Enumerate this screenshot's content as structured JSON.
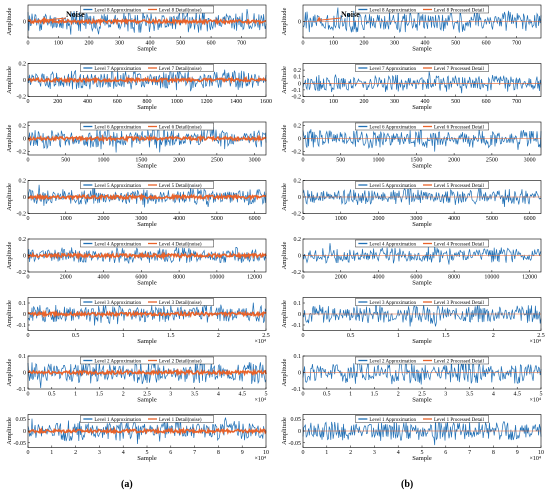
{
  "columns": [
    {
      "label": "(a)",
      "panels": [
        {
          "legend": [
            "Level 8 Approximation",
            "Level 8 Detail(noise)"
          ],
          "noise": true,
          "annotation": "Noise",
          "xlim": [
            0,
            780
          ],
          "xticks": [
            "0",
            "100",
            "200",
            "300",
            "400",
            "500",
            "600",
            "700"
          ],
          "xtick_values": [
            0,
            100,
            200,
            300,
            400,
            500,
            600,
            700
          ],
          "ylim": [
            -0.2,
            0.2
          ],
          "yticks": [
            "0"
          ],
          "ytick_values": [
            0
          ],
          "exponent": "",
          "amplitude": 0.14,
          "seed": 11
        },
        {
          "legend": [
            "Level 7 Approximation",
            "Level 7 Detail(noise)"
          ],
          "noise": true,
          "xlim": [
            0,
            1600
          ],
          "xticks": [
            "0",
            "200",
            "400",
            "600",
            "800",
            "1000",
            "1200",
            "1400",
            "1600"
          ],
          "xtick_values": [
            0,
            200,
            400,
            600,
            800,
            1000,
            1200,
            1400,
            1600
          ],
          "ylim": [
            -0.2,
            0.2
          ],
          "yticks": [
            "0.2",
            "0",
            "-0.2"
          ],
          "ytick_values": [
            0.2,
            0,
            -0.2
          ],
          "exponent": "",
          "amplitude": 0.13,
          "seed": 12
        },
        {
          "legend": [
            "Level 6 Approximation",
            "Level 6 Detail(noise)"
          ],
          "noise": true,
          "xlim": [
            0,
            3150
          ],
          "xticks": [
            "0",
            "500",
            "1000",
            "1500",
            "2000",
            "2500",
            "3000"
          ],
          "xtick_values": [
            0,
            500,
            1000,
            1500,
            2000,
            2500,
            3000
          ],
          "ylim": [
            -0.25,
            0.25
          ],
          "yticks": [
            "0.2",
            "0",
            "-0.2"
          ],
          "ytick_values": [
            0.2,
            0,
            -0.2
          ],
          "exponent": "",
          "amplitude": 0.15,
          "seed": 13
        },
        {
          "legend": [
            "Level 5 Approximation",
            "Level 5 Detail(noise)"
          ],
          "noise": true,
          "xlim": [
            0,
            6300
          ],
          "xticks": [
            "0",
            "1000",
            "2000",
            "3000",
            "4000",
            "5000",
            "6000"
          ],
          "xtick_values": [
            0,
            1000,
            2000,
            3000,
            4000,
            5000,
            6000
          ],
          "ylim": [
            -0.2,
            0.2
          ],
          "yticks": [
            "0.2",
            "0",
            "-0.2"
          ],
          "ytick_values": [
            0.2,
            0,
            -0.2
          ],
          "exponent": "",
          "amplitude": 0.1,
          "seed": 14
        },
        {
          "legend": [
            "Level 4 Approximation",
            "Level 4 Detail(noise)"
          ],
          "noise": true,
          "xlim": [
            0,
            12600
          ],
          "xticks": [
            "0",
            "2000",
            "4000",
            "6000",
            "8000",
            "10000",
            "12000"
          ],
          "xtick_values": [
            0,
            2000,
            4000,
            6000,
            8000,
            10000,
            12000
          ],
          "ylim": [
            -0.2,
            0.2
          ],
          "yticks": [
            "0.2",
            "0",
            "-0.2"
          ],
          "ytick_values": [
            0.2,
            0,
            -0.2
          ],
          "exponent": "",
          "amplitude": 0.1,
          "seed": 15
        },
        {
          "legend": [
            "Level 3 Approximation",
            "Level 3 Detail(noise)"
          ],
          "noise": true,
          "xlim": [
            0,
            2.5
          ],
          "xticks": [
            "0",
            "0.5",
            "1",
            "1.5",
            "2",
            "2.5"
          ],
          "xtick_values": [
            0,
            0.5,
            1,
            1.5,
            2,
            2.5
          ],
          "ylim": [
            -0.15,
            0.15
          ],
          "yticks": [
            "0.1",
            "0",
            "-0.1"
          ],
          "ytick_values": [
            0.1,
            0,
            -0.1
          ],
          "exponent": "×10⁴",
          "amplitude": 0.09,
          "seed": 16
        },
        {
          "legend": [
            "Level 2 Approximation",
            "Level 2 Detail(noise)"
          ],
          "noise": true,
          "xlim": [
            0,
            5
          ],
          "xticks": [
            "0",
            "0.5",
            "1",
            "1.5",
            "2",
            "2.5",
            "3",
            "3.5",
            "4",
            "4.5",
            "5"
          ],
          "xtick_values": [
            0,
            0.5,
            1,
            1.5,
            2,
            2.5,
            3,
            3.5,
            4,
            4.5,
            5
          ],
          "ylim": [
            -0.1,
            0.1
          ],
          "yticks": [
            "0.1",
            "0",
            "-0.1"
          ],
          "ytick_values": [
            0.1,
            0,
            -0.1
          ],
          "exponent": "×10⁴",
          "amplitude": 0.07,
          "seed": 17
        },
        {
          "legend": [
            "Level 1 Approximation",
            "Level 1 Detail(noise)"
          ],
          "noise": true,
          "xlim": [
            0,
            10
          ],
          "xticks": [
            "0",
            "1",
            "2",
            "3",
            "4",
            "5",
            "6",
            "7",
            "8",
            "9",
            "10"
          ],
          "xtick_values": [
            0,
            1,
            2,
            3,
            4,
            5,
            6,
            7,
            8,
            9,
            10
          ],
          "ylim": [
            -0.07,
            0.07
          ],
          "yticks": [
            "0.05",
            "0",
            "-0.05"
          ],
          "ytick_values": [
            0.05,
            0,
            -0.05
          ],
          "exponent": "×10⁴",
          "amplitude": 0.045,
          "seed": 18
        }
      ]
    },
    {
      "label": "(b)",
      "panels": [
        {
          "legend": [
            "Level 8 Approximation",
            "Level 8 Processed Detail"
          ],
          "noise": false,
          "annotation": "Noise",
          "xlim": [
            0,
            780
          ],
          "xticks": [
            "0",
            "100",
            "200",
            "300",
            "400",
            "500",
            "600",
            "700"
          ],
          "xtick_values": [
            0,
            100,
            200,
            300,
            400,
            500,
            600,
            700
          ],
          "ylim": [
            -0.2,
            0.2
          ],
          "yticks": [
            "0"
          ],
          "ytick_values": [
            0
          ],
          "exponent": "",
          "amplitude": 0.14,
          "seed": 21
        },
        {
          "legend": [
            "Level 7 Approximation",
            "Level 7 Processed Detail"
          ],
          "noise": false,
          "xlim": [
            0,
            780
          ],
          "xticks": [
            "0",
            "100",
            "200",
            "300",
            "400",
            "500",
            "600",
            "700"
          ],
          "xtick_values": [
            0,
            100,
            200,
            300,
            400,
            500,
            600,
            700
          ],
          "ylim": [
            -0.2,
            0.3
          ],
          "yticks": [
            "0.2",
            "0.1",
            "0",
            "-0.1",
            "-0.2"
          ],
          "ytick_values": [
            0.2,
            0.1,
            0,
            -0.1,
            -0.2
          ],
          "exponent": "",
          "amplitude": 0.14,
          "seed": 22
        },
        {
          "legend": [
            "Level 6 Approximation",
            "Level 6 Processed Detail"
          ],
          "noise": false,
          "xlim": [
            0,
            3150
          ],
          "xticks": [
            "0",
            "500",
            "1000",
            "1500",
            "2000",
            "2500",
            "3000"
          ],
          "xtick_values": [
            0,
            500,
            1000,
            1500,
            2000,
            2500,
            3000
          ],
          "ylim": [
            -0.25,
            0.25
          ],
          "yticks": [
            "0.2",
            "0",
            "-0.2"
          ],
          "ytick_values": [
            0.2,
            0,
            -0.2
          ],
          "exponent": "",
          "amplitude": 0.15,
          "seed": 23
        },
        {
          "legend": [
            "Level 5 Approximation",
            "Level 5 Processed Detail"
          ],
          "noise": false,
          "xlim": [
            0,
            6300
          ],
          "xticks": [
            "0",
            "1000",
            "2000",
            "3000",
            "4000",
            "5000",
            "6000"
          ],
          "xtick_values": [
            0,
            1000,
            2000,
            3000,
            4000,
            5000,
            6000
          ],
          "ylim": [
            -0.2,
            0.2
          ],
          "yticks": [
            "0.2",
            "0",
            "-0.2"
          ],
          "ytick_values": [
            0.2,
            0,
            -0.2
          ],
          "exponent": "",
          "amplitude": 0.1,
          "seed": 24
        },
        {
          "legend": [
            "Level 4 Approximation",
            "Level 4 Processed Detail"
          ],
          "noise": false,
          "xlim": [
            0,
            12600
          ],
          "xticks": [
            "0",
            "2000",
            "4000",
            "6000",
            "8000",
            "10000",
            "12000"
          ],
          "xtick_values": [
            0,
            2000,
            4000,
            6000,
            8000,
            10000,
            12000
          ],
          "ylim": [
            -0.2,
            0.2
          ],
          "yticks": [
            "0.2",
            "0",
            "-0.2"
          ],
          "ytick_values": [
            0.2,
            0,
            -0.2
          ],
          "exponent": "",
          "amplitude": 0.1,
          "seed": 25
        },
        {
          "legend": [
            "Level 3 Approximation",
            "Level 3 Processed Detail"
          ],
          "noise": false,
          "xlim": [
            0,
            2.5
          ],
          "xticks": [
            "0",
            "0.5",
            "1",
            "1.5",
            "2",
            "2.5"
          ],
          "xtick_values": [
            0,
            0.5,
            1,
            1.5,
            2,
            2.5
          ],
          "ylim": [
            -0.15,
            0.15
          ],
          "yticks": [
            "0.1",
            "0",
            "-0.1"
          ],
          "ytick_values": [
            0.1,
            0,
            -0.1
          ],
          "exponent": "×10⁴",
          "amplitude": 0.09,
          "seed": 26
        },
        {
          "legend": [
            "Level 2 Approximation",
            "Level 2 Processed Detail"
          ],
          "noise": false,
          "xlim": [
            0,
            5
          ],
          "xticks": [
            "0",
            "0.5",
            "1",
            "1.5",
            "2",
            "2.5",
            "3",
            "3.5",
            "4",
            "4.5",
            "5"
          ],
          "xtick_values": [
            0,
            0.5,
            1,
            1.5,
            2,
            2.5,
            3,
            3.5,
            4,
            4.5,
            5
          ],
          "ylim": [
            -0.1,
            0.1
          ],
          "yticks": [
            "0.1",
            "0",
            "-0.1"
          ],
          "ytick_values": [
            0.1,
            0,
            -0.1
          ],
          "exponent": "×10⁴",
          "amplitude": 0.07,
          "seed": 27
        },
        {
          "legend": [
            "Level 1 Approximation",
            "Level 1 Processed Detail"
          ],
          "noise": false,
          "xlim": [
            0,
            10
          ],
          "xticks": [
            "0",
            "1",
            "2",
            "3",
            "4",
            "5",
            "6",
            "7",
            "8",
            "9",
            "10"
          ],
          "xtick_values": [
            0,
            1,
            2,
            3,
            4,
            5,
            6,
            7,
            8,
            9,
            10
          ],
          "ylim": [
            -0.07,
            0.07
          ],
          "yticks": [
            "0.05",
            "0",
            "-0.05"
          ],
          "ytick_values": [
            0.05,
            0,
            -0.05
          ],
          "exponent": "×10⁴",
          "amplitude": 0.045,
          "seed": 28
        }
      ]
    }
  ],
  "axis": {
    "xlabel": "Sample",
    "ylabel": "Amplitude"
  },
  "colors": {
    "approximation": "#1f6fb5",
    "detail": "#e8622a",
    "annotation": "#e8622a"
  },
  "chart_data": {
    "type": "line",
    "series_per_panel": [
      "Approximation",
      "Detail"
    ],
    "grid": false,
    "legend_placement": "top-center"
  }
}
